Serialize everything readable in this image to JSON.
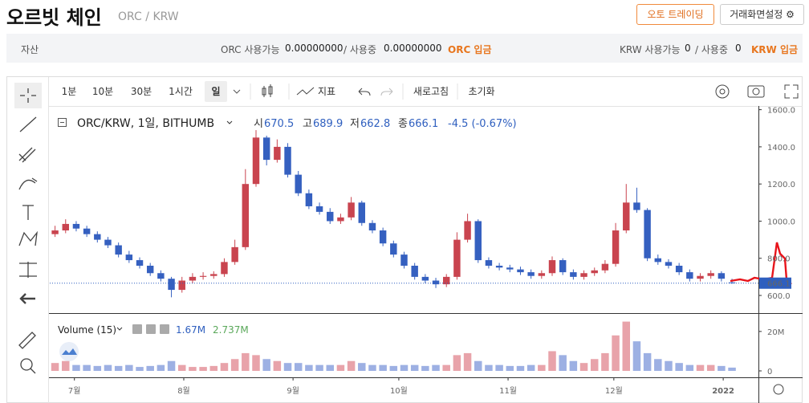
{
  "header": {
    "title": "오르빗 체인",
    "pair": "ORC / KRW",
    "buttons": [
      "오토 트레이딩",
      "거래화면설정"
    ]
  },
  "assets": {
    "label": "자산",
    "orc": {
      "label": "ORC 사용가능",
      "available": "0.00000000",
      "separator": "/ 사용중",
      "in_use": "0.00000000",
      "deposit": "ORC 입금"
    },
    "krw": {
      "label": "KRW 사용가능",
      "available": "0",
      "separator": "/ 사용중",
      "in_use": "0",
      "deposit": "KRW 입금"
    }
  },
  "toolbar": {
    "intervals": [
      "1분",
      "10분",
      "30분",
      "1시간",
      "일"
    ],
    "indicator": "지표",
    "refresh": "새로고침",
    "reset": "초기화"
  },
  "legend": {
    "symbol": "ORC/KRW, 1일, BITHUMB",
    "ohlc_labels": [
      "시",
      "고",
      "저",
      "종"
    ],
    "change": "-4.5 (-0.67%)",
    "volume_title": "Volume (15)",
    "volume_value": "1.67M",
    "volume_ma": "2.737M"
  },
  "chart_data": [
    {
      "type": "candlestick",
      "up_color": "#c9444f",
      "down_color": "#3560c0",
      "open": [
        930,
        950,
        985,
        960,
        930,
        900,
        870,
        820,
        790,
        760,
        720,
        690,
        630,
        680,
        700,
        705,
        715,
        780,
        860,
        1200,
        1450,
        1330,
        1400,
        1250,
        1150,
        1080,
        1050,
        1000,
        1020,
        1100,
        990,
        950,
        880,
        820,
        760,
        700,
        680,
        660,
        700,
        900,
        1000,
        790,
        760,
        750,
        740,
        725,
        705,
        720,
        790,
        725,
        700,
        720,
        735,
        770,
        950,
        1100,
        1060,
        800,
        780,
        760,
        725,
        690,
        705,
        720,
        670.5
      ],
      "high": [
        975,
        1010,
        1000,
        975,
        945,
        915,
        885,
        840,
        805,
        775,
        735,
        700,
        700,
        720,
        725,
        730,
        800,
        900,
        1280,
        1490,
        1460,
        1440,
        1420,
        1270,
        1170,
        1100,
        1070,
        1040,
        1130,
        1110,
        1005,
        965,
        895,
        835,
        775,
        715,
        695,
        715,
        940,
        1040,
        1010,
        805,
        775,
        765,
        755,
        740,
        735,
        810,
        800,
        740,
        735,
        750,
        790,
        990,
        1200,
        1180,
        1070,
        820,
        795,
        775,
        740,
        720,
        735,
        730,
        689.9
      ],
      "low": [
        915,
        935,
        945,
        915,
        885,
        855,
        805,
        775,
        745,
        705,
        675,
        590,
        615,
        665,
        685,
        690,
        700,
        765,
        845,
        1185,
        1300,
        1315,
        1235,
        1135,
        1065,
        1035,
        985,
        985,
        1005,
        975,
        935,
        865,
        805,
        745,
        685,
        665,
        640,
        645,
        685,
        885,
        775,
        745,
        735,
        725,
        710,
        690,
        690,
        705,
        710,
        685,
        685,
        705,
        720,
        755,
        935,
        1045,
        785,
        765,
        745,
        710,
        675,
        675,
        690,
        675,
        662.8
      ],
      "close": [
        950,
        985,
        960,
        930,
        900,
        870,
        820,
        790,
        760,
        720,
        690,
        630,
        680,
        700,
        705,
        715,
        780,
        860,
        1200,
        1450,
        1330,
        1400,
        1250,
        1150,
        1080,
        1050,
        1000,
        1020,
        1100,
        990,
        950,
        880,
        820,
        760,
        700,
        680,
        660,
        700,
        900,
        1000,
        790,
        760,
        750,
        740,
        725,
        705,
        720,
        790,
        725,
        700,
        720,
        735,
        770,
        950,
        1100,
        1060,
        800,
        780,
        760,
        725,
        690,
        705,
        720,
        690,
        666.1
      ],
      "ylim": [
        505,
        1620
      ],
      "yticks": [
        {
          "value": 600,
          "label": "600.0"
        },
        {
          "value": 800,
          "label": "800.0"
        },
        {
          "value": 1000,
          "label": "1000.0"
        },
        {
          "value": 1200,
          "label": "1200.0"
        },
        {
          "value": 1400,
          "label": "1400.0"
        },
        {
          "value": 1600,
          "label": "1600.0"
        }
      ],
      "xlim": [
        0,
        67
      ],
      "xticks": [
        {
          "value": 2.33,
          "label": "7월"
        },
        {
          "value": 12.67,
          "label": "8월"
        },
        {
          "value": 23,
          "label": "9월"
        },
        {
          "value": 33,
          "label": "10월"
        },
        {
          "value": 43.33,
          "label": "11월"
        },
        {
          "value": 53.33,
          "label": "12월"
        },
        {
          "value": 63.67,
          "label": "2022"
        }
      ]
    },
    {
      "type": "bar",
      "up_color": "#e8a3aa",
      "down_color": "#9db0e3",
      "values": [
        4000000,
        5000000,
        3000000,
        3000000,
        2500000,
        3000000,
        2500000,
        3000000,
        2000000,
        2500000,
        3000000,
        5000000,
        3000000,
        2000000,
        2000000,
        2500000,
        4000000,
        6000000,
        9000000,
        8000000,
        6000000,
        5000000,
        4000000,
        4000000,
        3000000,
        3000000,
        3000000,
        3000000,
        5000000,
        4000000,
        3000000,
        3000000,
        2500000,
        3000000,
        3000000,
        2500000,
        3000000,
        3000000,
        8000000,
        9000000,
        5000000,
        3000000,
        3000000,
        2500000,
        2500000,
        3000000,
        3000000,
        10000000,
        8000000,
        5000000,
        4000000,
        6000000,
        9000000,
        18000000,
        25000000,
        15000000,
        9000000,
        6000000,
        5000000,
        4000000,
        3000000,
        3000000,
        3000000,
        2500000,
        1670000
      ],
      "ylim": [
        0,
        28500000
      ],
      "yticks": [
        0,
        {
          "value": 20000000,
          "label": "20M"
        }
      ]
    }
  ]
}
